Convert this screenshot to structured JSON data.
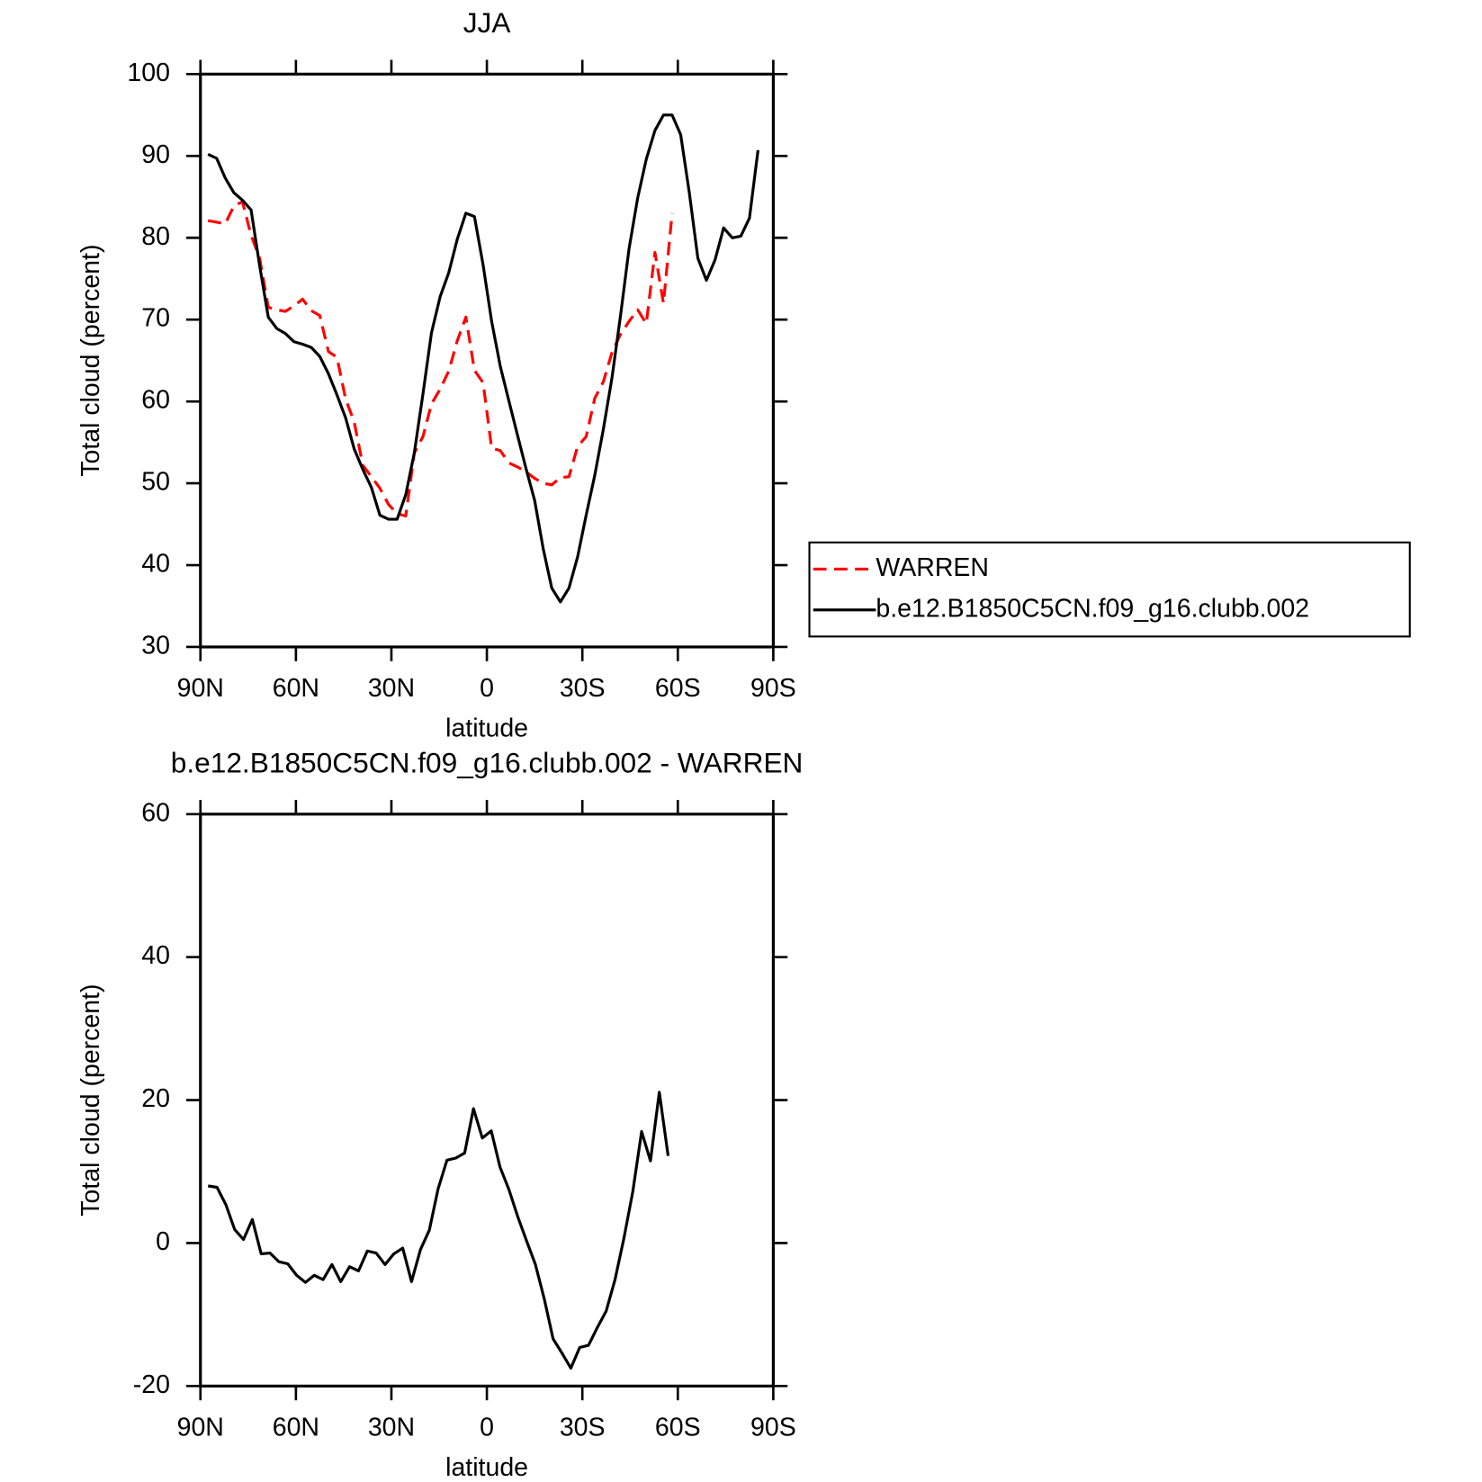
{
  "chart_data": [
    {
      "type": "line",
      "title": "JJA",
      "x_label": "latitude",
      "y_label": "Total cloud (percent)",
      "x": [
        87.6,
        84.9,
        82.2,
        79.5,
        76.8,
        74.1,
        71.4,
        68.7,
        66.0,
        63.3,
        60.6,
        57.9,
        55.2,
        52.5,
        49.8,
        47.1,
        44.4,
        41.7,
        39.0,
        36.3,
        33.6,
        30.9,
        28.2,
        25.5,
        22.8,
        20.1,
        17.4,
        14.7,
        12.0,
        9.3,
        6.6,
        3.9,
        1.2,
        -1.5,
        -4.2,
        -6.9,
        -9.6,
        -12.3,
        -15.0,
        -17.7,
        -20.4,
        -23.1,
        -25.8,
        -28.5,
        -31.2,
        -33.9,
        -36.6,
        -39.3,
        -42.0,
        -44.7,
        -47.4,
        -50.1,
        -52.8,
        -55.5,
        -58.2,
        -60.9,
        -63.6,
        -66.3,
        -69.0,
        -71.7,
        -74.4,
        -77.1,
        -79.8,
        -82.5,
        -85.2
      ],
      "xlim": [
        90,
        -90
      ],
      "xticks": [
        {
          "value": 90,
          "label": "90N"
        },
        {
          "value": 60,
          "label": "60N"
        },
        {
          "value": 30,
          "label": "30N"
        },
        0,
        {
          "value": -30,
          "label": "30S"
        },
        {
          "value": -60,
          "label": "60S"
        },
        {
          "value": -90,
          "label": "90S"
        }
      ],
      "ylim": [
        30,
        100
      ],
      "yticks": [
        30,
        40,
        50,
        60,
        70,
        80,
        90,
        100
      ],
      "legend": "right",
      "series": [
        {
          "name": "WARREN",
          "color": "#ff0000",
          "line_style": "dashed",
          "values": [
            82.1,
            81.9,
            81.7,
            83.9,
            84.4,
            80.3,
            77.5,
            71.5,
            71.2,
            71.0,
            71.7,
            72.5,
            71.1,
            70.5,
            66.1,
            65.4,
            60.3,
            57.5,
            52.2,
            50.8,
            49.4,
            47.4,
            46.3,
            46.0,
            53.7,
            55.7,
            59.7,
            61.5,
            63.7,
            67.4,
            70.3,
            63.8,
            62.3,
            54.3,
            54.0,
            52.5,
            52.0,
            51.4,
            50.6,
            50.0,
            49.8,
            50.7,
            50.8,
            54.5,
            55.7,
            60.4,
            62.4,
            66.0,
            68.2,
            69.8,
            71.2,
            69.5,
            78.2,
            72.0,
            83.0,
            null,
            null,
            null,
            null,
            null,
            null,
            null,
            null,
            null,
            null
          ]
        },
        {
          "name": "b.e12.B1850C5CN.f09_g16.clubb.002",
          "color": "#000000",
          "line_style": "solid",
          "values": [
            90.2,
            89.7,
            87.3,
            85.5,
            84.6,
            83.4,
            76.6,
            70.3,
            68.9,
            68.3,
            67.3,
            67.0,
            66.6,
            65.5,
            63.4,
            60.8,
            58.0,
            54.2,
            51.7,
            49.5,
            46.1,
            45.6,
            45.6,
            48.6,
            53.7,
            60.9,
            68.4,
            72.8,
            75.7,
            79.8,
            83.0,
            82.6,
            76.7,
            69.8,
            64.3,
            60.1,
            55.9,
            51.8,
            47.9,
            42.0,
            37.2,
            35.5,
            37.2,
            41.0,
            46.1,
            51.0,
            56.6,
            62.9,
            70.5,
            78.7,
            84.9,
            89.6,
            93.1,
            95.0,
            95.0,
            92.6,
            85.5,
            77.5,
            74.8,
            77.3,
            81.2,
            80.0,
            80.2,
            82.4,
            90.7
          ]
        }
      ]
    },
    {
      "type": "line",
      "title": "b.e12.B1850C5CN.f09_g16.clubb.002 - WARREN",
      "x_label": "latitude",
      "y_label": "Total cloud (percent)",
      "x": [
        87.6,
        84.82,
        82.04,
        79.26,
        76.48,
        73.7,
        70.92,
        68.14,
        65.36,
        62.58,
        59.8,
        57.02,
        54.24,
        51.46,
        48.68,
        45.9,
        43.12,
        40.34,
        37.56,
        34.78,
        32.0,
        29.22,
        26.44,
        23.66,
        20.88,
        18.1,
        15.32,
        12.54,
        9.76,
        6.98,
        4.2,
        1.42,
        -1.36,
        -4.14,
        -6.92,
        -9.7,
        -12.48,
        -15.26,
        -18.04,
        -20.82,
        -23.6,
        -26.38,
        -29.16,
        -31.94,
        -34.72,
        -37.5,
        -40.28,
        -43.06,
        -45.84,
        -48.62,
        -51.4,
        -54.18,
        -56.96
      ],
      "xlim": [
        90,
        -90
      ],
      "xticks": [
        {
          "value": 90,
          "label": "90N"
        },
        {
          "value": 60,
          "label": "60N"
        },
        {
          "value": 30,
          "label": "30N"
        },
        0,
        {
          "value": -30,
          "label": "30S"
        },
        {
          "value": -60,
          "label": "60S"
        },
        {
          "value": -90,
          "label": "90S"
        }
      ],
      "ylim": [
        -20,
        60
      ],
      "yticks": [
        -20,
        0,
        20,
        40,
        60
      ],
      "series": [
        {
          "color": "#000000",
          "line_style": "solid",
          "values": [
            8.0,
            7.8,
            5.4,
            1.9,
            0.5,
            3.3,
            -1.5,
            -1.4,
            -2.6,
            -2.9,
            -4.5,
            -5.5,
            -4.5,
            -5.1,
            -3.0,
            -5.4,
            -3.3,
            -3.9,
            -1.1,
            -1.4,
            -3.0,
            -1.5,
            -0.7,
            -5.4,
            -0.9,
            1.8,
            7.6,
            11.6,
            11.9,
            12.6,
            18.8,
            14.7,
            15.7,
            10.6,
            7.5,
            3.7,
            0.3,
            -3.0,
            -7.8,
            -13.4,
            -15.4,
            -17.5,
            -14.6,
            -14.3,
            -11.8,
            -9.5,
            -5.1,
            0.7,
            7.2,
            15.6,
            11.5,
            21.1,
            12.2
          ]
        }
      ]
    }
  ]
}
